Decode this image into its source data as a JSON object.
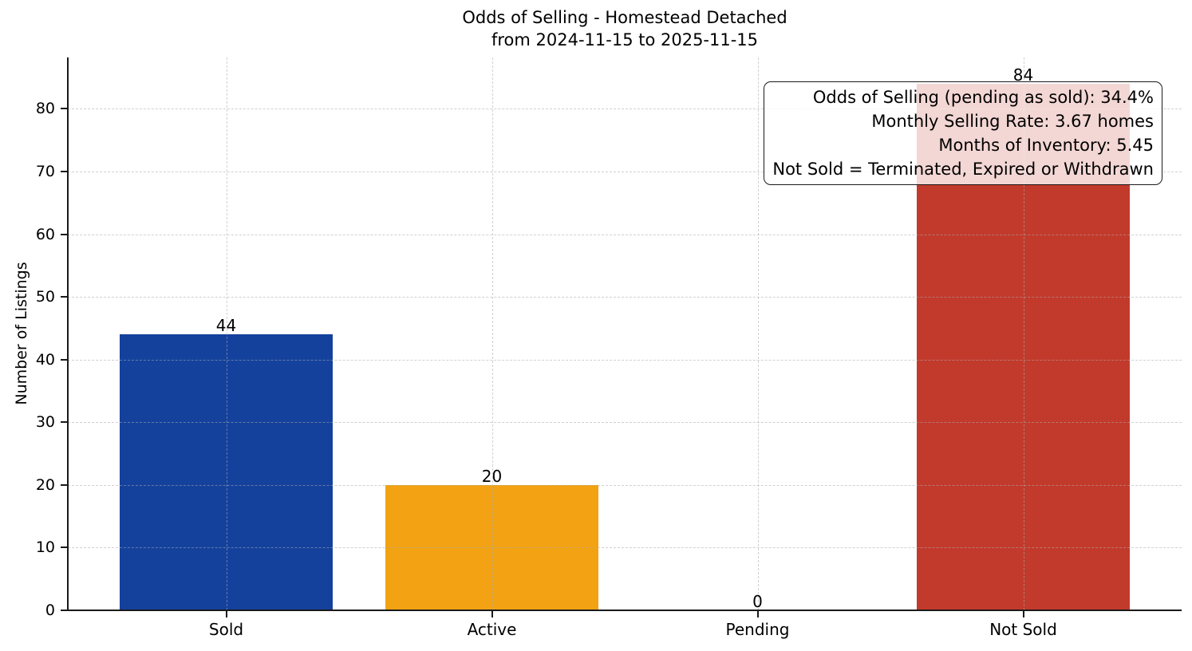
{
  "chart_data": {
    "type": "bar",
    "title": "Odds of Selling - Homestead Detached",
    "subtitle": "from 2024-11-15 to 2025-11-15",
    "categories": [
      "Sold",
      "Active",
      "Pending",
      "Not Sold"
    ],
    "values": [
      44,
      20,
      0,
      84
    ],
    "bar_colors": [
      "#14419C",
      "#F2A212",
      null,
      "#C23A2C"
    ],
    "bar_value_labels": [
      "44",
      "20",
      "0",
      "84"
    ],
    "xlabel": "",
    "ylabel": "Number of Listings",
    "yticks": [
      0,
      10,
      20,
      30,
      40,
      50,
      60,
      70,
      80
    ],
    "ylim": [
      0,
      88.2
    ],
    "grid": {
      "horizontal": true,
      "vertical": true,
      "style": "dashed",
      "drawn_over_bars": true
    },
    "legend": null,
    "annotation_box": {
      "position": "top-right",
      "text_align": "right",
      "lines": [
        "Odds of Selling (pending as sold): 34.4%",
        "Monthly Selling Rate: 3.67 homes",
        "Months of Inventory: 5.45",
        "Not Sold = Terminated, Expired or Withdrawn"
      ]
    },
    "colors": {
      "background": "#FFFFFF",
      "axis": "#1A1A1A",
      "gridline": "#D6D6D6",
      "text": "#000000"
    }
  }
}
